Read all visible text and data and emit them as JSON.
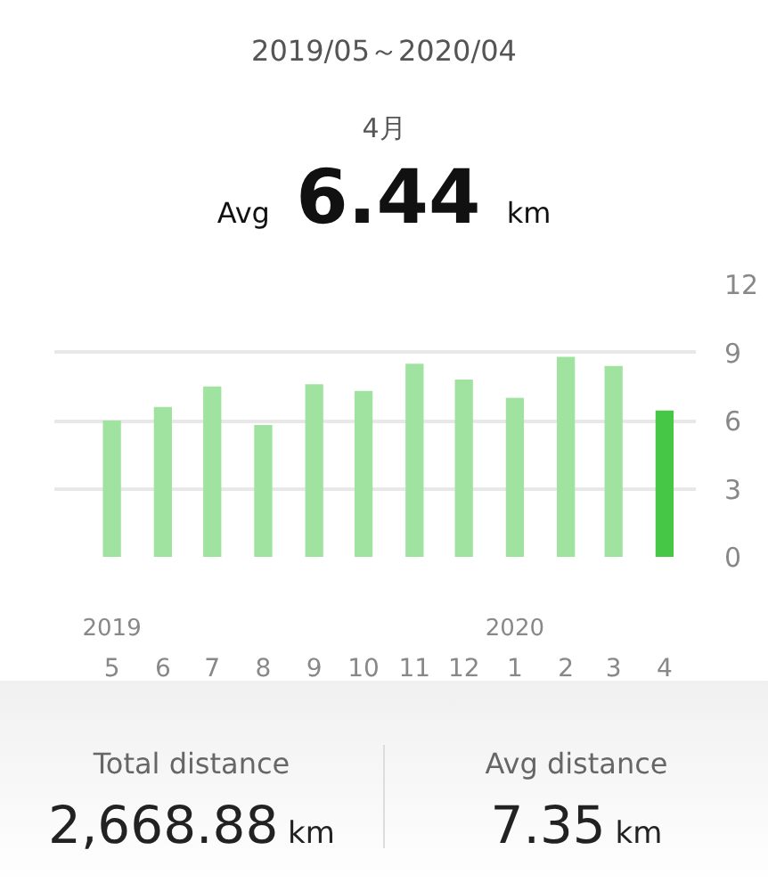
{
  "chart_data": {
    "type": "bar",
    "title": "2019/05～2020/04",
    "subtitle": "4月",
    "x": [
      "2019-05",
      "2019-06",
      "2019-07",
      "2019-08",
      "2019-09",
      "2019-10",
      "2019-11",
      "2019-12",
      "2020-01",
      "2020-02",
      "2020-03",
      "2020-04"
    ],
    "values": [
      6.0,
      6.6,
      7.5,
      5.8,
      7.6,
      7.3,
      8.5,
      7.8,
      7.0,
      8.8,
      8.4,
      6.44
    ],
    "colors": [
      "#a0e3a0",
      "#a0e3a0",
      "#a0e3a0",
      "#a0e3a0",
      "#a0e3a0",
      "#a0e3a0",
      "#a0e3a0",
      "#a0e3a0",
      "#a0e3a0",
      "#a0e3a0",
      "#a0e3a0",
      "#46c846"
    ],
    "xlim": [
      "2019-03-27",
      "2020-04-20"
    ],
    "xticks": [
      {
        "value": "2019-05",
        "label": "5"
      },
      {
        "value": "2019-06",
        "label": "6"
      },
      {
        "value": "2019-07",
        "label": "7"
      },
      {
        "value": "2019-08",
        "label": "8"
      },
      {
        "value": "2019-09",
        "label": "9"
      },
      {
        "value": "2019-10",
        "label": "10"
      },
      {
        "value": "2019-11",
        "label": "11"
      },
      {
        "value": "2019-12",
        "label": "12"
      },
      {
        "value": "2020-01",
        "label": "1"
      },
      {
        "value": "2020-02",
        "label": "2"
      },
      {
        "value": "2020-03",
        "label": "3"
      },
      {
        "value": "2020-04",
        "label": "4"
      }
    ],
    "ylim": [
      0,
      12
    ],
    "yticks": [
      0,
      3,
      6,
      9,
      12
    ],
    "grid": "y",
    "annotations": [
      "Avg 6.44 km",
      "2019",
      "2020",
      "Total distance",
      "2,668.88 km",
      "Avg distance",
      "7.35 km"
    ]
  }
}
